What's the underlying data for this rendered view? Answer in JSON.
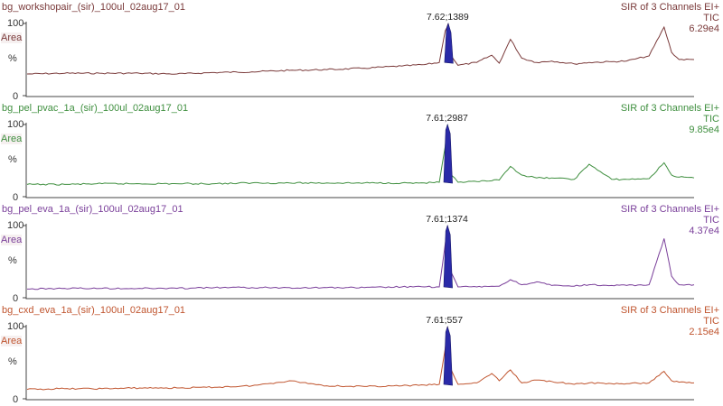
{
  "panels": [
    {
      "header": "bg_workshopair_(sir)_100ul_02aug17_01",
      "channels": "SIR of 3 Channels EI+",
      "trace": "TIC",
      "scale": "6.29e4",
      "area_label": "Area",
      "pct_label": "%",
      "yticks": [
        "100",
        "0"
      ],
      "peak_label": "7.62;1389",
      "color": "#7a3a3a"
    },
    {
      "header": "bg_pel_pvac_1a_(sir)_100ul_02aug17_01",
      "channels": "SIR of 3 Channels EI+",
      "trace": "TIC",
      "scale": "9.85e4",
      "area_label": "Area",
      "pct_label": "%",
      "yticks": [
        "100",
        "0"
      ],
      "peak_label": "7.61;2987",
      "color": "#3f8f3f"
    },
    {
      "header": "bg_pel_eva_1a_(sir)_100ul_02aug17_01",
      "channels": "SIR of 3 Channels EI+",
      "trace": "TIC",
      "scale": "4.37e4",
      "area_label": "Area",
      "pct_label": "%",
      "yticks": [
        "100",
        "0"
      ],
      "peak_label": "7.61;1374",
      "color": "#7a3f9a"
    },
    {
      "header": "bg_cxd_eva_1a_(sir)_100ul_02aug17_01",
      "channels": "SIR of 3 Channels EI+",
      "trace": "TIC",
      "scale": "2.15e4",
      "area_label": "Area",
      "pct_label": "%",
      "yticks": [
        "100",
        "0"
      ],
      "peak_label": "7.61;557",
      "color": "#c0552f"
    }
  ],
  "chart_data": [
    {
      "type": "line",
      "title": "bg_workshopair_(sir)_100ul_02aug17_01",
      "ylabel": "%",
      "ylim": [
        0,
        100
      ],
      "x": [
        2.0,
        2.5,
        3.0,
        3.5,
        4.0,
        4.5,
        5.0,
        5.5,
        6.0,
        6.5,
        7.0,
        7.3,
        7.5,
        7.58,
        7.62,
        7.66,
        7.75,
        8.0,
        8.2,
        8.3,
        8.45,
        8.6,
        8.8,
        9.0,
        9.3,
        9.5,
        9.8,
        10.0,
        10.3,
        10.5,
        10.6,
        10.7,
        10.9
      ],
      "series": [
        {
          "name": "",
          "values": [
            30,
            31,
            31,
            31,
            30,
            32,
            33,
            35,
            36,
            38,
            41,
            43,
            46,
            90,
            100,
            55,
            42,
            46,
            56,
            45,
            78,
            52,
            46,
            48,
            44,
            46,
            47,
            48,
            55,
            95,
            60,
            50,
            50
          ]
        }
      ],
      "peak": {
        "x": 7.62,
        "area": 1389
      }
    },
    {
      "type": "line",
      "title": "bg_pel_pvac_1a_(sir)_100ul_02aug17_01",
      "ylabel": "%",
      "ylim": [
        0,
        100
      ],
      "x": [
        2.0,
        2.5,
        3.0,
        3.5,
        4.0,
        4.5,
        5.0,
        5.5,
        6.0,
        6.5,
        7.0,
        7.3,
        7.5,
        7.58,
        7.61,
        7.66,
        7.75,
        8.0,
        8.2,
        8.3,
        8.45,
        8.6,
        8.8,
        9.0,
        9.3,
        9.5,
        9.8,
        10.0,
        10.3,
        10.5,
        10.6,
        10.7,
        10.9
      ],
      "series": [
        {
          "name": "",
          "values": [
            17,
            17,
            18,
            18,
            18,
            18,
            19,
            19,
            19,
            19,
            19,
            19,
            20,
            70,
            100,
            30,
            20,
            21,
            22,
            23,
            42,
            30,
            26,
            26,
            24,
            45,
            24,
            24,
            25,
            47,
            30,
            27,
            26
          ]
        }
      ],
      "peak": {
        "x": 7.61,
        "area": 2987
      }
    },
    {
      "type": "line",
      "title": "bg_pel_eva_1a_(sir)_100ul_02aug17_01",
      "ylabel": "%",
      "ylim": [
        0,
        100
      ],
      "x": [
        2.0,
        2.5,
        3.0,
        3.5,
        4.0,
        4.5,
        5.0,
        5.5,
        6.0,
        6.5,
        7.0,
        7.3,
        7.5,
        7.58,
        7.61,
        7.66,
        7.75,
        8.0,
        8.2,
        8.3,
        8.45,
        8.6,
        8.8,
        9.0,
        9.3,
        9.5,
        9.8,
        10.0,
        10.3,
        10.5,
        10.6,
        10.7,
        10.9
      ],
      "series": [
        {
          "name": "",
          "values": [
            12,
            13,
            13,
            13,
            13,
            14,
            14,
            14,
            14,
            14,
            15,
            15,
            15,
            75,
            100,
            35,
            15,
            15,
            16,
            16,
            25,
            18,
            22,
            17,
            16,
            18,
            17,
            17,
            18,
            82,
            30,
            18,
            18
          ]
        }
      ],
      "peak": {
        "x": 7.61,
        "area": 1374
      }
    },
    {
      "type": "line",
      "title": "bg_cxd_eva_1a_(sir)_100ul_02aug17_01",
      "ylabel": "%",
      "ylim": [
        0,
        100
      ],
      "x": [
        2.0,
        2.5,
        3.0,
        3.5,
        4.0,
        4.5,
        5.0,
        5.5,
        6.0,
        6.5,
        7.0,
        7.3,
        7.5,
        7.58,
        7.61,
        7.66,
        7.75,
        8.0,
        8.2,
        8.3,
        8.45,
        8.6,
        8.8,
        9.0,
        9.3,
        9.5,
        9.8,
        10.0,
        10.3,
        10.5,
        10.6,
        10.7,
        10.9
      ],
      "series": [
        {
          "name": "",
          "values": [
            13,
            14,
            14,
            15,
            15,
            16,
            18,
            25,
            18,
            17,
            18,
            19,
            20,
            70,
            100,
            40,
            20,
            22,
            35,
            25,
            40,
            22,
            26,
            24,
            20,
            22,
            21,
            21,
            22,
            38,
            25,
            23,
            22
          ]
        }
      ],
      "peak": {
        "x": 7.61,
        "area": 557
      }
    }
  ]
}
